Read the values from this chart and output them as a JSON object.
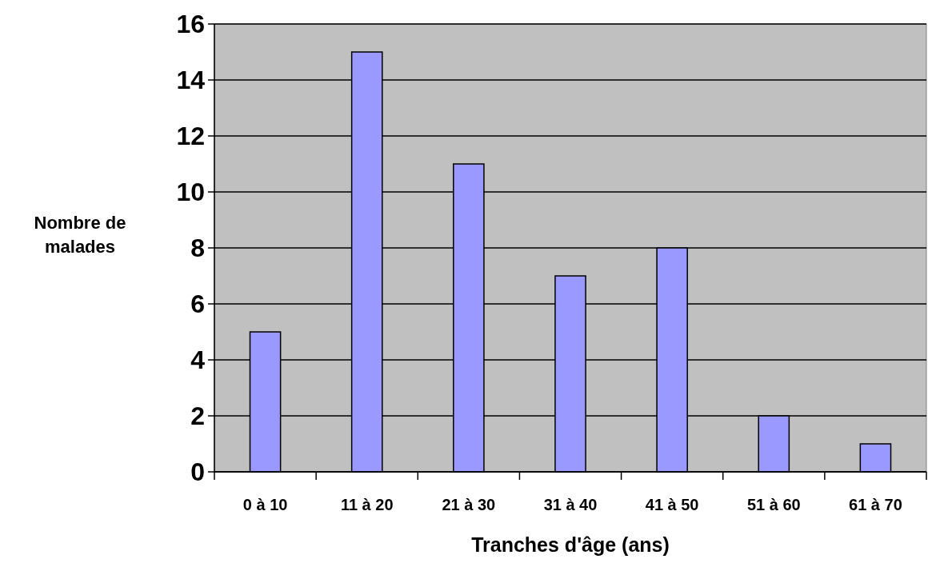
{
  "chart_data": {
    "type": "bar",
    "xlabel": "Tranches d'âge (ans)",
    "ylabel": "Nombre de\nmalades",
    "categories": [
      "0 à 10",
      "11 à 20",
      "21 à 30",
      "31 à 40",
      "41 à 50",
      "51 à 60",
      "61 à 70"
    ],
    "values": [
      5,
      15,
      11,
      7,
      8,
      2,
      1
    ],
    "color": "#9999ff",
    "ylim": [
      0,
      16
    ],
    "yticks": [
      0,
      2,
      4,
      6,
      8,
      10,
      12,
      14,
      16
    ],
    "grid": "y"
  }
}
